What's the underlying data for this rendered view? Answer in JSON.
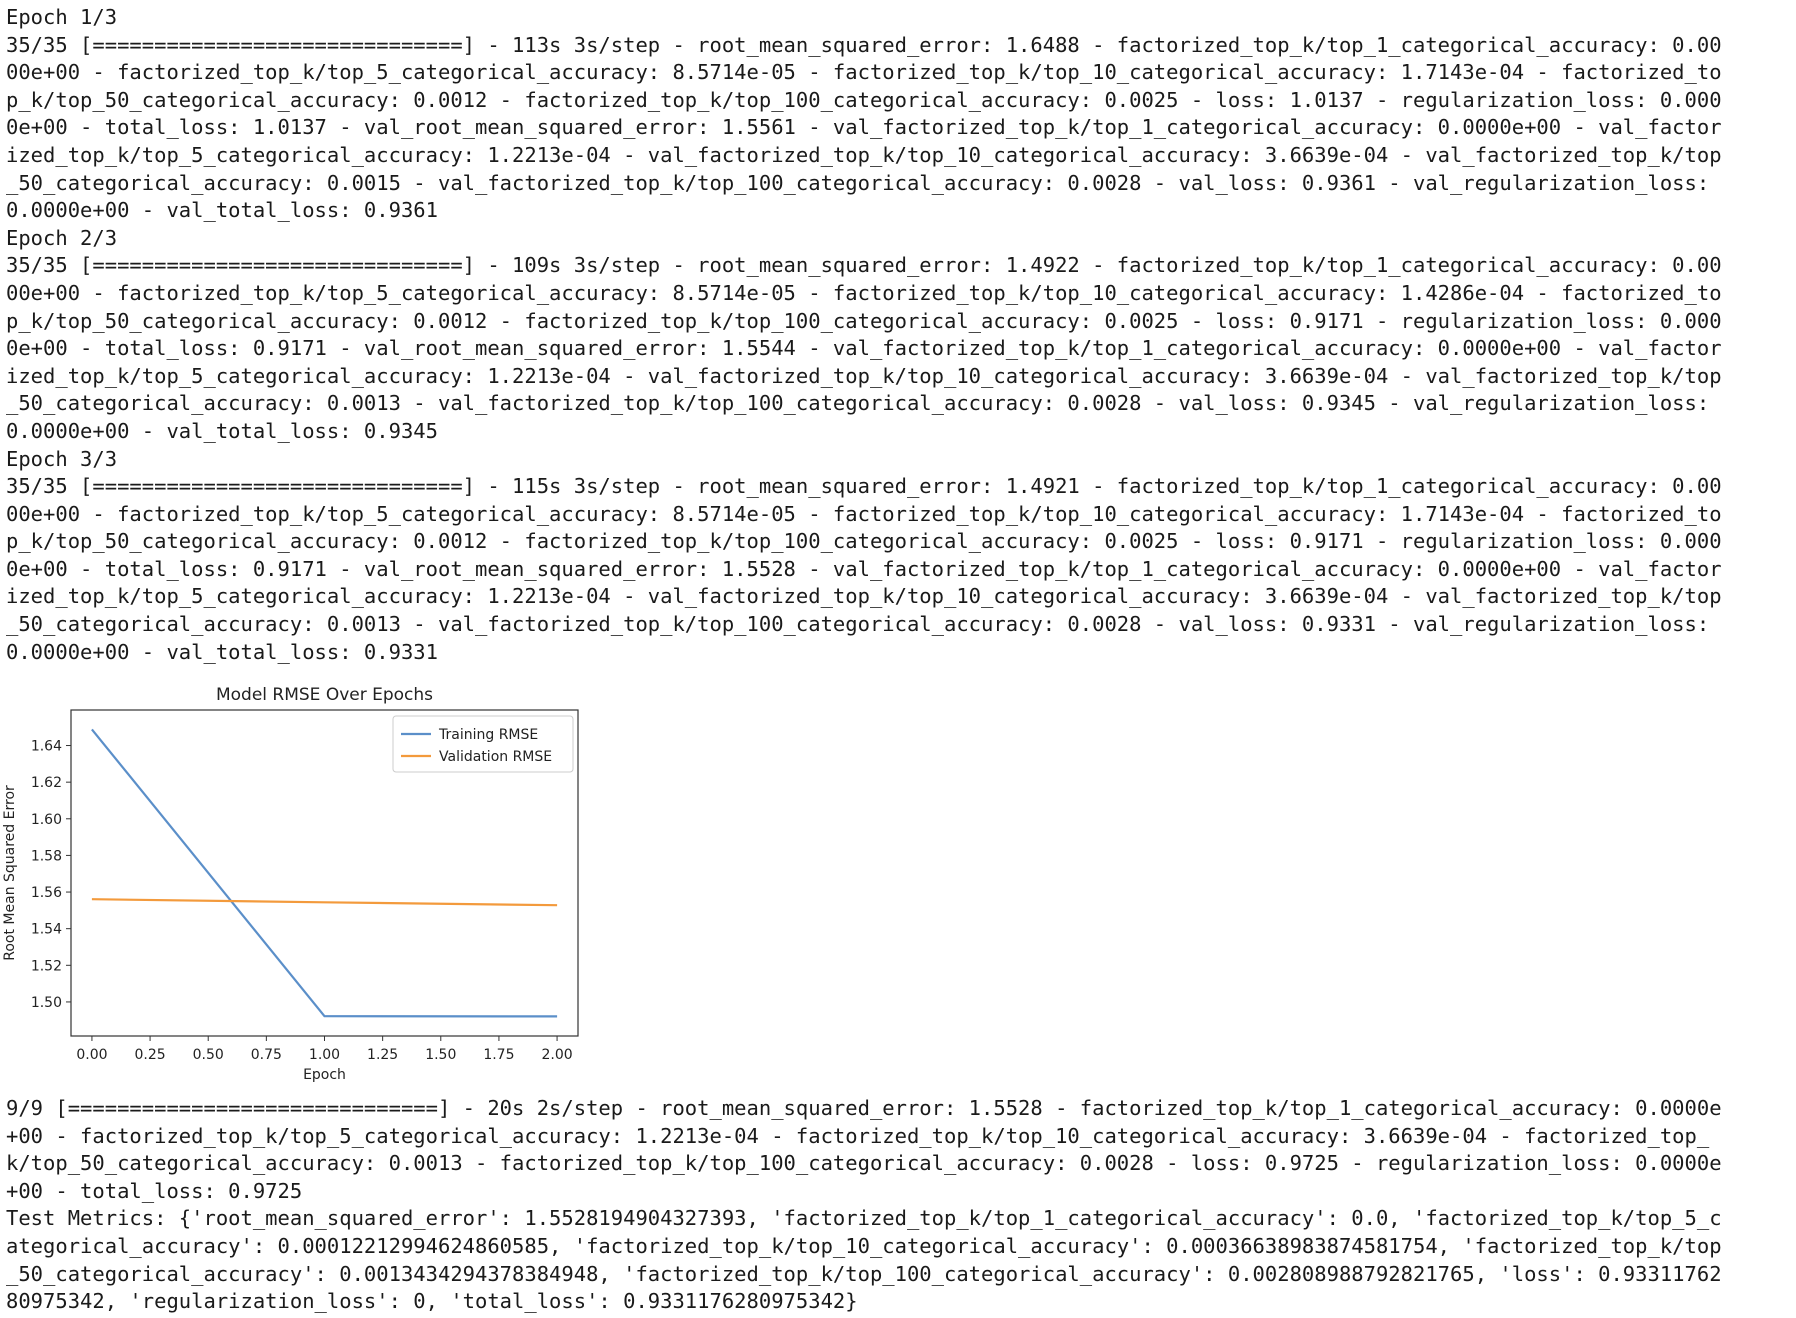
{
  "log_top": [
    "Epoch 1/3",
    "35/35 [==============================] - 113s 3s/step - root_mean_squared_error: 1.6488 - factorized_top_k/top_1_categorical_accuracy: 0.00",
    "00e+00 - factorized_top_k/top_5_categorical_accuracy: 8.5714e-05 - factorized_top_k/top_10_categorical_accuracy: 1.7143e-04 - factorized_to",
    "p_k/top_50_categorical_accuracy: 0.0012 - factorized_top_k/top_100_categorical_accuracy: 0.0025 - loss: 1.0137 - regularization_loss: 0.000",
    "0e+00 - total_loss: 1.0137 - val_root_mean_squared_error: 1.5561 - val_factorized_top_k/top_1_categorical_accuracy: 0.0000e+00 - val_factor",
    "ized_top_k/top_5_categorical_accuracy: 1.2213e-04 - val_factorized_top_k/top_10_categorical_accuracy: 3.6639e-04 - val_factorized_top_k/top",
    "_50_categorical_accuracy: 0.0015 - val_factorized_top_k/top_100_categorical_accuracy: 0.0028 - val_loss: 0.9361 - val_regularization_loss:",
    "0.0000e+00 - val_total_loss: 0.9361",
    "Epoch 2/3",
    "35/35 [==============================] - 109s 3s/step - root_mean_squared_error: 1.4922 - factorized_top_k/top_1_categorical_accuracy: 0.00",
    "00e+00 - factorized_top_k/top_5_categorical_accuracy: 8.5714e-05 - factorized_top_k/top_10_categorical_accuracy: 1.4286e-04 - factorized_to",
    "p_k/top_50_categorical_accuracy: 0.0012 - factorized_top_k/top_100_categorical_accuracy: 0.0025 - loss: 0.9171 - regularization_loss: 0.000",
    "0e+00 - total_loss: 0.9171 - val_root_mean_squared_error: 1.5544 - val_factorized_top_k/top_1_categorical_accuracy: 0.0000e+00 - val_factor",
    "ized_top_k/top_5_categorical_accuracy: 1.2213e-04 - val_factorized_top_k/top_10_categorical_accuracy: 3.6639e-04 - val_factorized_top_k/top",
    "_50_categorical_accuracy: 0.0013 - val_factorized_top_k/top_100_categorical_accuracy: 0.0028 - val_loss: 0.9345 - val_regularization_loss:",
    "0.0000e+00 - val_total_loss: 0.9345",
    "Epoch 3/3",
    "35/35 [==============================] - 115s 3s/step - root_mean_squared_error: 1.4921 - factorized_top_k/top_1_categorical_accuracy: 0.00",
    "00e+00 - factorized_top_k/top_5_categorical_accuracy: 8.5714e-05 - factorized_top_k/top_10_categorical_accuracy: 1.7143e-04 - factorized_to",
    "p_k/top_50_categorical_accuracy: 0.0012 - factorized_top_k/top_100_categorical_accuracy: 0.0025 - loss: 0.9171 - regularization_loss: 0.000",
    "0e+00 - total_loss: 0.9171 - val_root_mean_squared_error: 1.5528 - val_factorized_top_k/top_1_categorical_accuracy: 0.0000e+00 - val_factor",
    "ized_top_k/top_5_categorical_accuracy: 1.2213e-04 - val_factorized_top_k/top_10_categorical_accuracy: 3.6639e-04 - val_factorized_top_k/top",
    "_50_categorical_accuracy: 0.0013 - val_factorized_top_k/top_100_categorical_accuracy: 0.0028 - val_loss: 0.9331 - val_regularization_loss:",
    "0.0000e+00 - val_total_loss: 0.9331"
  ],
  "log_bottom": [
    "9/9 [==============================] - 20s 2s/step - root_mean_squared_error: 1.5528 - factorized_top_k/top_1_categorical_accuracy: 0.0000e",
    "+00 - factorized_top_k/top_5_categorical_accuracy: 1.2213e-04 - factorized_top_k/top_10_categorical_accuracy: 3.6639e-04 - factorized_top_",
    "k/top_50_categorical_accuracy: 0.0013 - factorized_top_k/top_100_categorical_accuracy: 0.0028 - loss: 0.9725 - regularization_loss: 0.0000e",
    "+00 - total_loss: 0.9725",
    "Test Metrics: {'root_mean_squared_error': 1.5528194904327393, 'factorized_top_k/top_1_categorical_accuracy': 0.0, 'factorized_top_k/top_5_c",
    "ategorical_accuracy': 0.00012212994624860585, 'factorized_top_k/top_10_categorical_accuracy': 0.00036638983874581754, 'factorized_top_k/top",
    "_50_categorical_accuracy': 0.0013434294378384948, 'factorized_top_k/top_100_categorical_accuracy': 0.002808988792821765, 'loss': 0.93311762",
    "80975342, 'regularization_loss': 0, 'total_loss': 0.9331176280975342}"
  ],
  "chart_data": {
    "type": "line",
    "title": "Model RMSE Over Epochs",
    "xlabel": "Epoch",
    "ylabel": "Root Mean Squared Error",
    "x": [
      0,
      1,
      2
    ],
    "xlim": [
      -0.09,
      2.09
    ],
    "ylim": [
      1.4814,
      1.6594
    ],
    "xticks": [
      0.0,
      0.25,
      0.5,
      0.75,
      1.0,
      1.25,
      1.5,
      1.75,
      2.0
    ],
    "xtick_labels": [
      "0.00",
      "0.25",
      "0.50",
      "0.75",
      "1.00",
      "1.25",
      "1.50",
      "1.75",
      "2.00"
    ],
    "yticks": [
      1.5,
      1.52,
      1.54,
      1.56,
      1.58,
      1.6,
      1.62,
      1.64
    ],
    "ytick_labels": [
      "1.50",
      "1.52",
      "1.54",
      "1.56",
      "1.58",
      "1.60",
      "1.62",
      "1.64"
    ],
    "grid": false,
    "legend_position": "top-right",
    "series": [
      {
        "name": "Training RMSE",
        "values": [
          1.6488,
          1.4922,
          1.4921
        ],
        "color": "#5b8fc9"
      },
      {
        "name": "Validation RMSE",
        "values": [
          1.5561,
          1.5544,
          1.5528
        ],
        "color": "#f39a3c"
      }
    ]
  }
}
